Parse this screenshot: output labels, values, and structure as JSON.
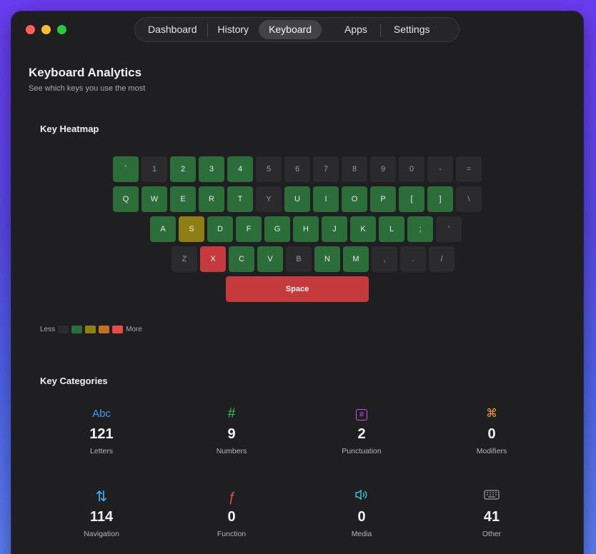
{
  "colors": {
    "level0": "#2b2b2d",
    "level1": "#2c6e3a",
    "level2": "#8e7f15",
    "level3": "#c66f26",
    "level4": "#c6393c"
  },
  "nav": {
    "tabs": [
      "Dashboard",
      "History",
      "Keyboard",
      "Apps",
      "Settings"
    ],
    "active": "Keyboard"
  },
  "page": {
    "title": "Keyboard Analytics",
    "subtitle": "See which keys you use the most"
  },
  "heatmap": {
    "title": "Key Heatmap",
    "rows": [
      [
        [
          "`",
          1
        ],
        [
          "1",
          0
        ],
        [
          "2",
          1
        ],
        [
          "3",
          1
        ],
        [
          "4",
          1
        ],
        [
          "5",
          0
        ],
        [
          "6",
          0
        ],
        [
          "7",
          0
        ],
        [
          "8",
          0
        ],
        [
          "9",
          0
        ],
        [
          "0",
          0
        ],
        [
          "-",
          0
        ],
        [
          "=",
          0
        ]
      ],
      [
        [
          "Q",
          1
        ],
        [
          "W",
          1
        ],
        [
          "E",
          1
        ],
        [
          "R",
          1
        ],
        [
          "T",
          1
        ],
        [
          "Y",
          0
        ],
        [
          "U",
          1
        ],
        [
          "I",
          1
        ],
        [
          "O",
          1
        ],
        [
          "P",
          1
        ],
        [
          "[",
          1
        ],
        [
          "]",
          1
        ],
        [
          "\\",
          0
        ]
      ],
      [
        [
          "A",
          1
        ],
        [
          "S",
          2
        ],
        [
          "D",
          1
        ],
        [
          "F",
          1
        ],
        [
          "G",
          1
        ],
        [
          "H",
          1
        ],
        [
          "J",
          1
        ],
        [
          "K",
          1
        ],
        [
          "L",
          1
        ],
        [
          ";",
          1
        ],
        [
          "'",
          0
        ]
      ],
      [
        [
          "Z",
          0
        ],
        [
          "X",
          4
        ],
        [
          "C",
          1
        ],
        [
          "V",
          1
        ],
        [
          "B",
          0
        ],
        [
          "N",
          1
        ],
        [
          "M",
          1
        ],
        [
          ",",
          0
        ],
        [
          ".",
          0
        ],
        [
          "/",
          0
        ]
      ]
    ],
    "space": {
      "label": "Space",
      "level": 4
    },
    "legend": {
      "less": "Less",
      "more": "More"
    }
  },
  "categories": {
    "title": "Key Categories",
    "items": [
      {
        "icon": "letters-icon",
        "glyph": "Abc",
        "color": "#3a9bf2",
        "value": "121",
        "label": "Letters"
      },
      {
        "icon": "hash-icon",
        "glyph": "#",
        "color": "#30c85a",
        "value": "9",
        "label": "Numbers"
      },
      {
        "icon": "punctuation-icon",
        "glyph": "#",
        "color": "#c750e6",
        "value": "2",
        "label": "Punctuation"
      },
      {
        "icon": "command-icon",
        "glyph": "⌘",
        "color": "#f39a33",
        "value": "0",
        "label": "Modifiers"
      },
      {
        "icon": "arrows-updown-icon",
        "glyph": "⇅",
        "color": "#38b6f5",
        "value": "114",
        "label": "Navigation"
      },
      {
        "icon": "function-icon",
        "glyph": "ƒ",
        "color": "#f0505a",
        "value": "0",
        "label": "Function"
      },
      {
        "icon": "speaker-icon",
        "glyph": "🔈",
        "color": "#40c9d4",
        "value": "0",
        "label": "Media"
      },
      {
        "icon": "keyboard-icon",
        "glyph": "⌨",
        "color": "#9a9a9d",
        "value": "41",
        "label": "Other"
      }
    ]
  }
}
